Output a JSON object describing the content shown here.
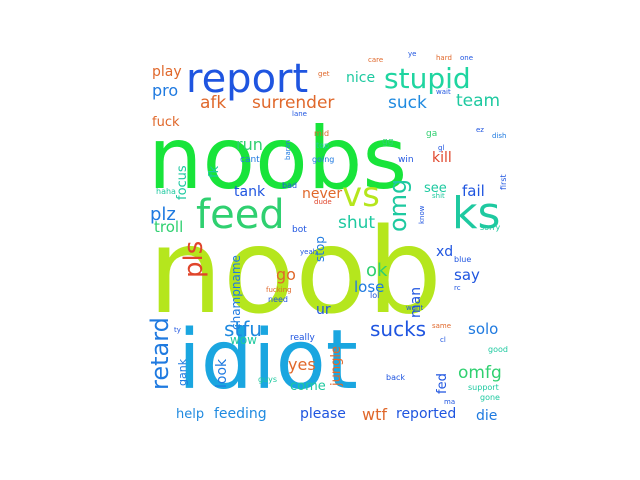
{
  "words": [
    {
      "text": "noob",
      "color": "#b5e61d"
    },
    {
      "text": "noobs",
      "color": "#18e43a"
    },
    {
      "text": "idiot",
      "color": "#1aa6e0"
    },
    {
      "text": "report",
      "color": "#1f55e0"
    },
    {
      "text": "stupid",
      "color": "#1fd5a0"
    },
    {
      "text": "feed",
      "color": "#2fd070"
    },
    {
      "text": "ks",
      "color": "#1ec9a0"
    },
    {
      "text": "vs",
      "color": "#b5e61d"
    },
    {
      "text": "omg",
      "color": "#1ec9a0"
    },
    {
      "text": "pls",
      "color": "#e0452b"
    },
    {
      "text": "retard",
      "color": "#1f7ae0"
    },
    {
      "text": "surrender",
      "color": "#e0682b"
    },
    {
      "text": "suck",
      "color": "#1f8ae0"
    },
    {
      "text": "team",
      "color": "#1ec9a0"
    },
    {
      "text": "nice",
      "color": "#1ec9a0"
    },
    {
      "text": "afk",
      "color": "#e0682b"
    },
    {
      "text": "pro",
      "color": "#1f7ae0"
    },
    {
      "text": "play",
      "color": "#e0682b"
    },
    {
      "text": "fuck",
      "color": "#e0682b"
    },
    {
      "text": "plz",
      "color": "#1f7ae0"
    },
    {
      "text": "troll",
      "color": "#2fd070"
    },
    {
      "text": "shut",
      "color": "#1ec9a0"
    },
    {
      "text": "fail",
      "color": "#1f55e0"
    },
    {
      "text": "kill",
      "color": "#e0452b"
    },
    {
      "text": "focus",
      "color": "#1ec9a0"
    },
    {
      "text": "tank",
      "color": "#1f55e0"
    },
    {
      "text": "run",
      "color": "#2fd070"
    },
    {
      "text": "fk",
      "color": "#1ec9a0"
    },
    {
      "text": "never",
      "color": "#e0682b"
    },
    {
      "text": "see",
      "color": "#1ec9a0"
    },
    {
      "text": "stop",
      "color": "#1f7ae0"
    },
    {
      "text": "champname",
      "color": "#1f7ae0"
    },
    {
      "text": "go",
      "color": "#e0682b"
    },
    {
      "text": "ok",
      "color": "#2fd070"
    },
    {
      "text": "lose",
      "color": "#1f7ae0"
    },
    {
      "text": "man",
      "color": "#1f55e0"
    },
    {
      "text": "say",
      "color": "#1f55e0"
    },
    {
      "text": "xd",
      "color": "#1f55e0"
    },
    {
      "text": "stfu",
      "color": "#1f8ae0"
    },
    {
      "text": "sucks",
      "color": "#1f55e0"
    },
    {
      "text": "solo",
      "color": "#1f7ae0"
    },
    {
      "text": "ur",
      "color": "#1f55e0"
    },
    {
      "text": "look",
      "color": "#1f7ae0"
    },
    {
      "text": "yes",
      "color": "#e0682b"
    },
    {
      "text": "wow",
      "color": "#1ec9a0"
    },
    {
      "text": "jungle",
      "color": "#e0682b"
    },
    {
      "text": "fed",
      "color": "#1f55e0"
    },
    {
      "text": "omfg",
      "color": "#2fd070"
    },
    {
      "text": "come",
      "color": "#1ec9a0"
    },
    {
      "text": "gank",
      "color": "#1f7ae0"
    },
    {
      "text": "help",
      "color": "#1f8ae0"
    },
    {
      "text": "feeding",
      "color": "#1f8ae0"
    },
    {
      "text": "please",
      "color": "#1f55e0"
    },
    {
      "text": "wtf",
      "color": "#e0682b"
    },
    {
      "text": "reported",
      "color": "#1f55e0"
    },
    {
      "text": "die",
      "color": "#1f7ae0"
    },
    {
      "text": "cant",
      "color": "#1f7ae0"
    },
    {
      "text": "mid",
      "color": "#e0682b"
    },
    {
      "text": "top",
      "color": "#1ec9a0"
    },
    {
      "text": "going",
      "color": "#1f7ae0"
    },
    {
      "text": "win",
      "color": "#1f55e0"
    },
    {
      "text": "gg",
      "color": "#2fd070"
    },
    {
      "text": "ga",
      "color": "#2fd070"
    },
    {
      "text": "bad",
      "color": "#1f55e0"
    },
    {
      "text": "bot",
      "color": "#1f55e0"
    },
    {
      "text": "haha",
      "color": "#1ec9a0"
    },
    {
      "text": "need",
      "color": "#1f55e0"
    },
    {
      "text": "lol",
      "color": "#1f55e0"
    },
    {
      "text": "really",
      "color": "#1f55e0"
    },
    {
      "text": "guys",
      "color": "#1ec9a0"
    },
    {
      "text": "back",
      "color": "#1f55e0"
    },
    {
      "text": "sorry",
      "color": "#1ec9a0"
    },
    {
      "text": "support",
      "color": "#1ec9a0"
    },
    {
      "text": "gone",
      "color": "#1ec9a0"
    },
    {
      "text": "good",
      "color": "#1ec9a0"
    },
    {
      "text": "first",
      "color": "#1f55e0"
    },
    {
      "text": "care",
      "color": "#e0682b"
    },
    {
      "text": "hard",
      "color": "#e0682b"
    },
    {
      "text": "one",
      "color": "#1f55e0"
    },
    {
      "text": "wait",
      "color": "#1f55e0"
    },
    {
      "text": "shit",
      "color": "#1ec9a0"
    },
    {
      "text": "dude",
      "color": "#e0452b"
    },
    {
      "text": "yeah",
      "color": "#1f55e0"
    },
    {
      "text": "blue",
      "color": "#1f55e0"
    },
    {
      "text": "know",
      "color": "#1f55e0"
    },
    {
      "text": "fucking",
      "color": "#e0682b"
    },
    {
      "text": "want",
      "color": "#1f55e0"
    },
    {
      "text": "same",
      "color": "#e0682b"
    },
    {
      "text": "baron",
      "color": "#1f7ae0"
    },
    {
      "text": "ma",
      "color": "#1f55e0"
    },
    {
      "text": "get",
      "color": "#e0682b"
    },
    {
      "text": "rc",
      "color": "#1f55e0"
    },
    {
      "text": "dish",
      "color": "#1f7ae0"
    },
    {
      "text": "lane",
      "color": "#1f55e0"
    },
    {
      "text": "cl",
      "color": "#1f55e0"
    },
    {
      "text": "ty",
      "color": "#1f55e0"
    },
    {
      "text": "gl",
      "color": "#1f55e0"
    },
    {
      "text": "ez",
      "color": "#1f55e0"
    },
    {
      "text": "ye",
      "color": "#1f55e0"
    }
  ]
}
